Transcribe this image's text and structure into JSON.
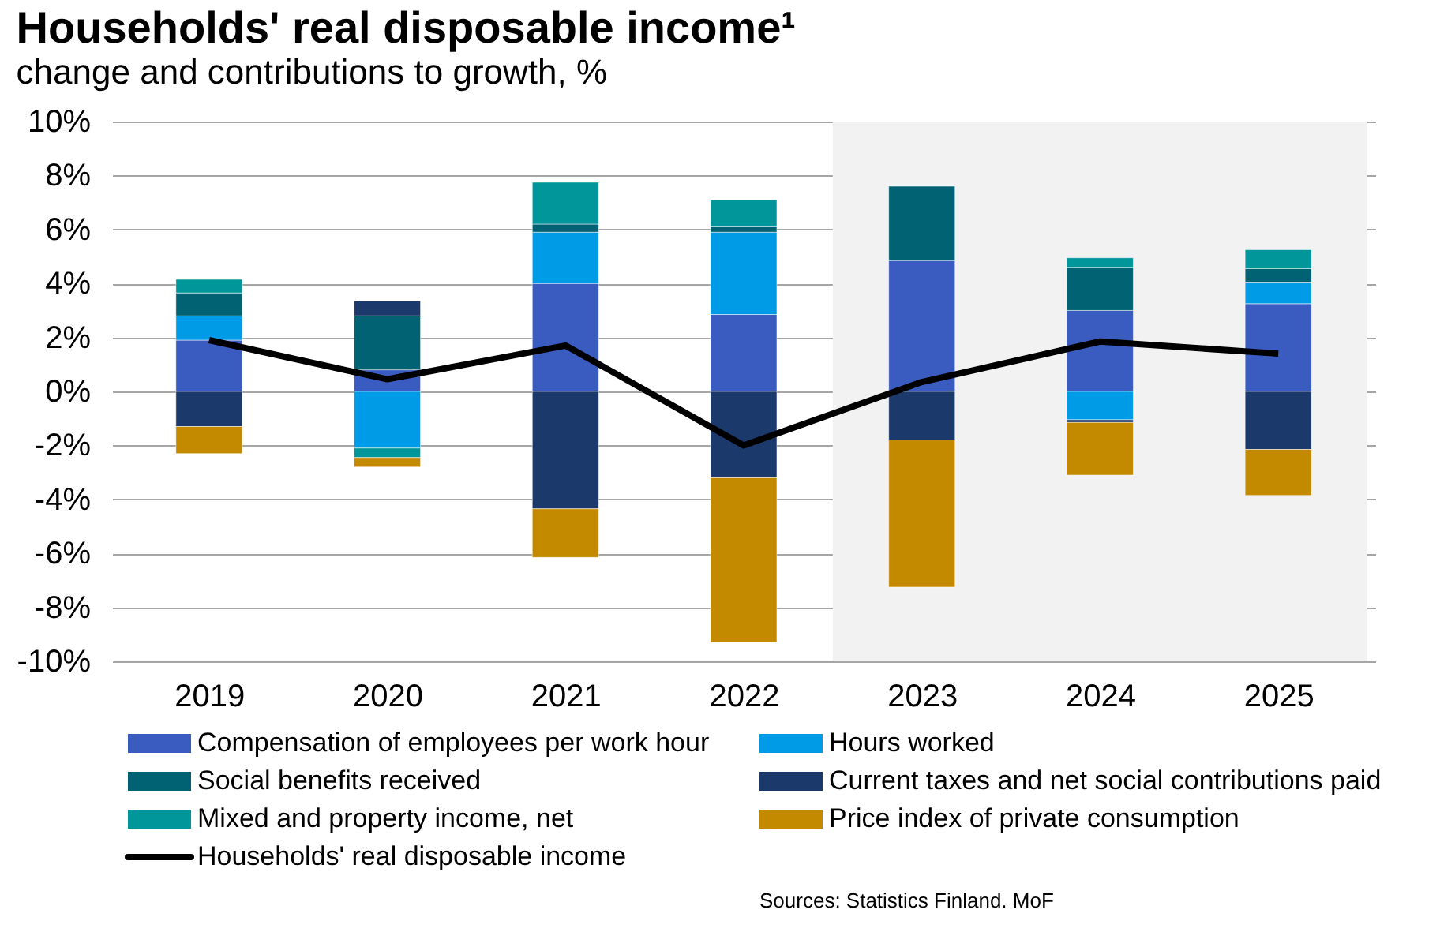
{
  "chart_data": {
    "type": "bar",
    "stacked": true,
    "title": "Households' real disposable income¹",
    "subtitle": "change and contributions to growth, %",
    "categories": [
      "2019",
      "2020",
      "2021",
      "2022",
      "2023",
      "2024",
      "2025"
    ],
    "series": [
      {
        "name": "Compensation of employees per work hour",
        "color": "#3a5bbf",
        "values": [
          1.9,
          0.8,
          4.0,
          2.85,
          4.85,
          3.0,
          3.25
        ]
      },
      {
        "name": "Hours worked",
        "color": "#009be6",
        "values": [
          0.9,
          -2.1,
          1.9,
          3.05,
          null,
          -1.05,
          0.8
        ]
      },
      {
        "name": "Social benefits received",
        "color": "#006272",
        "values": [
          0.85,
          2.0,
          0.3,
          0.2,
          2.75,
          1.6,
          0.5
        ]
      },
      {
        "name": "Current taxes and net social contributions paid",
        "color": "#1c396b",
        "values": [
          -1.3,
          0.55,
          -4.35,
          -3.2,
          -1.8,
          -0.1,
          -2.15
        ]
      },
      {
        "name": "Mixed and property income, net",
        "color": "#00969a",
        "values": [
          0.5,
          -0.35,
          1.55,
          1.0,
          null,
          0.35,
          0.7
        ]
      },
      {
        "name": "Price index of private consumption",
        "color": "#c38a00",
        "values": [
          -1.0,
          -0.35,
          -1.8,
          -6.1,
          -5.45,
          -1.95,
          -1.7
        ]
      },
      {
        "name": "Households' real disposable income",
        "type": "line",
        "color": "#000000",
        "values": [
          1.9,
          0.45,
          1.7,
          -2.0,
          0.35,
          1.85,
          1.4
        ]
      }
    ],
    "ylim": [
      -10,
      10
    ],
    "yticks": [
      {
        "value": -10,
        "label": "-10%"
      },
      {
        "value": -8,
        "label": "-8%"
      },
      {
        "value": -6,
        "label": "-6%"
      },
      {
        "value": -4,
        "label": "-4%"
      },
      {
        "value": -2,
        "label": "-2%"
      },
      {
        "value": 0,
        "label": "0%"
      },
      {
        "value": 2,
        "label": "2%"
      },
      {
        "value": 4,
        "label": "4%"
      },
      {
        "value": 6,
        "label": "6%"
      },
      {
        "value": 8,
        "label": "8%"
      },
      {
        "value": 10,
        "label": "10%"
      }
    ],
    "bands": [
      {
        "axis": "x",
        "from": "2023",
        "to": "2025",
        "color": "#f2f2f2"
      }
    ],
    "grid": "y",
    "legend": "bottom",
    "marker": "none",
    "line_style": "solid",
    "annotations": [
      "Sources: Statistics Finland. MoF"
    ]
  }
}
